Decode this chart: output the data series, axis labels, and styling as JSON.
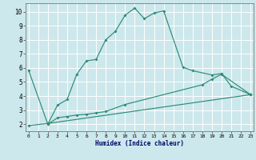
{
  "xlabel": "Humidex (Indice chaleur)",
  "bg_color": "#cce8ec",
  "grid_color": "#ffffff",
  "line_color": "#2d8b77",
  "xlim": [
    -0.3,
    23.3
  ],
  "ylim": [
    1.5,
    10.6
  ],
  "xticks": [
    0,
    1,
    2,
    3,
    4,
    5,
    6,
    7,
    8,
    9,
    10,
    11,
    12,
    13,
    14,
    15,
    16,
    17,
    18,
    19,
    20,
    21,
    22,
    23
  ],
  "yticks": [
    2,
    3,
    4,
    5,
    6,
    7,
    8,
    9,
    10
  ],
  "line1_x": [
    0,
    2,
    3,
    4,
    5,
    6,
    7,
    8,
    9,
    10,
    11,
    12,
    13,
    14,
    16,
    17,
    19,
    20,
    21,
    23
  ],
  "line1_y": [
    5.85,
    2.0,
    3.35,
    3.75,
    5.55,
    6.5,
    6.6,
    8.0,
    8.6,
    9.75,
    10.25,
    9.5,
    9.9,
    10.05,
    6.05,
    5.8,
    5.5,
    5.6,
    4.7,
    4.1
  ],
  "line2_x": [
    2,
    3,
    4,
    5,
    6,
    7,
    8,
    10,
    18,
    19,
    20,
    23
  ],
  "line2_y": [
    2.0,
    2.45,
    2.55,
    2.65,
    2.7,
    2.8,
    2.9,
    3.4,
    4.8,
    5.2,
    5.55,
    4.1
  ],
  "line3_x": [
    0,
    2,
    23
  ],
  "line3_y": [
    1.9,
    2.05,
    4.1
  ]
}
